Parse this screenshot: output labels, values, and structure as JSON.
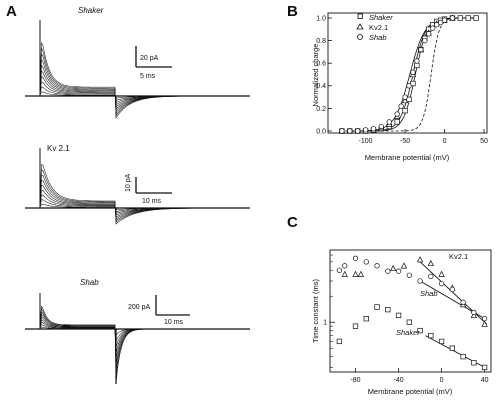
{
  "panels": {
    "A": {
      "letter": "A",
      "recordings": [
        {
          "label": "Shaker",
          "italic": true,
          "current_scale": "20 pA",
          "time_scale": "5 ms"
        },
        {
          "label": "Kv 2.1",
          "italic": false,
          "current_scale": "10 pA",
          "time_scale": "10 ms"
        },
        {
          "label": "Shab",
          "italic": true,
          "current_scale": "200 pA",
          "time_scale": "10 ms"
        }
      ]
    },
    "B": {
      "letter": "B",
      "chart_data": {
        "type": "scatter",
        "xlabel": "Membrane potential (mV)",
        "ylabel": "Normalized charge",
        "xlim": [
          -140,
          50
        ],
        "ylim": [
          0,
          1.0
        ],
        "x_ticks": [
          "-100",
          "-50",
          "0",
          "50"
        ],
        "y_ticks": [
          "0.0",
          "0.2",
          "0.4",
          "0.6",
          "0.8",
          "1.0"
        ],
        "legend_position": "top-left",
        "series": [
          {
            "name": "Shaker",
            "marker": "square",
            "x": [
              -130,
              -120,
              -110,
              -100,
              -90,
              -80,
              -70,
              -60,
              -50,
              -45,
              -40,
              -35,
              -30,
              -25,
              -20,
              -15,
              -10,
              -5,
              0,
              10,
              20,
              30,
              40
            ],
            "y": [
              0.0,
              0.0,
              0.0,
              0.0,
              0.01,
              0.02,
              0.04,
              0.08,
              0.18,
              0.28,
              0.42,
              0.58,
              0.72,
              0.82,
              0.9,
              0.94,
              0.97,
              0.98,
              0.99,
              1.0,
              1.0,
              1.0,
              1.0
            ]
          },
          {
            "name": "Kv2.1",
            "marker": "triangle",
            "x": [
              -130,
              -120,
              -110,
              -100,
              -90,
              -80,
              -70,
              -60,
              -50,
              -40,
              -30,
              -20,
              -10,
              0,
              10
            ],
            "y": [
              0.0,
              0.0,
              0.0,
              0.0,
              0.01,
              0.03,
              0.06,
              0.13,
              0.27,
              0.5,
              0.72,
              0.87,
              0.95,
              0.98,
              1.0
            ]
          },
          {
            "name": "Shab",
            "marker": "circle",
            "x": [
              -130,
              -120,
              -110,
              -100,
              -90,
              -80,
              -70,
              -60,
              -55,
              -50,
              -45,
              -40,
              -35,
              -30,
              -25,
              -20,
              -15,
              -10,
              -5,
              0,
              10
            ],
            "y": [
              0.0,
              0.0,
              0.0,
              0.01,
              0.02,
              0.04,
              0.08,
              0.15,
              0.22,
              0.3,
              0.4,
              0.52,
              0.62,
              0.72,
              0.8,
              0.86,
              0.91,
              0.94,
              0.96,
              0.98,
              1.0
            ]
          }
        ],
        "fits": [
          {
            "series": "Shaker",
            "style": "solid",
            "midpoint": -37,
            "slope": 7.5
          },
          {
            "series": "Kv2.1",
            "style": "solid",
            "midpoint": -40,
            "slope": 8
          },
          {
            "series": "Shab",
            "style": "solid",
            "midpoint": -44,
            "slope": 9.5
          },
          {
            "series": "",
            "style": "dashed",
            "midpoint": -17,
            "slope": 5
          }
        ]
      }
    },
    "C": {
      "letter": "C",
      "chart_data": {
        "type": "scatter",
        "xlabel": "Membrane potential (mV)",
        "ylabel": "Time constant (ms)",
        "y_scale": "log",
        "xlim": [
          -100,
          45
        ],
        "ylim": [
          0.28,
          6.5
        ],
        "x_ticks": [
          "-80",
          "-40",
          "0",
          "40"
        ],
        "y_ticks": [
          "1"
        ],
        "series": [
          {
            "name": "Kv2.1",
            "marker": "triangle",
            "x": [
              -90,
              -80,
              -75,
              -45,
              -35,
              -20,
              -10,
              0,
              10,
              20,
              30,
              40
            ],
            "y": [
              3.6,
              3.6,
              3.6,
              4.2,
              4.5,
              5.3,
              4.8,
              3.6,
              2.5,
              1.6,
              1.2,
              0.95
            ]
          },
          {
            "name": "Shab",
            "marker": "circle",
            "x": [
              -95,
              -90,
              -80,
              -70,
              -60,
              -50,
              -40,
              -30,
              -20,
              -10,
              0,
              10,
              20,
              30,
              40
            ],
            "y": [
              4.0,
              4.5,
              5.5,
              5.0,
              4.5,
              3.9,
              3.9,
              3.5,
              3.0,
              3.4,
              2.8,
              2.4,
              1.7,
              1.3,
              1.1
            ]
          },
          {
            "name": "Shaker",
            "marker": "square",
            "x": [
              -95,
              -80,
              -70,
              -60,
              -50,
              -40,
              -30,
              -20,
              -10,
              0,
              10,
              20,
              30,
              40
            ],
            "y": [
              0.6,
              0.9,
              1.1,
              1.5,
              1.4,
              1.2,
              1.0,
              0.8,
              0.7,
              0.6,
              0.5,
              0.4,
              0.34,
              0.3
            ]
          }
        ],
        "fits": [
          {
            "series": "Kv2.1",
            "x": [
              -20,
              42
            ],
            "y": [
              5.0,
              0.95
            ]
          },
          {
            "series": "Shab",
            "x": [
              -20,
              40
            ],
            "y": [
              3.0,
              1.1
            ]
          },
          {
            "series": "Shaker",
            "x": [
              -15,
              40
            ],
            "y": [
              0.7,
              0.3
            ]
          }
        ],
        "annotations": [
          {
            "text": "Kv2.1",
            "italic": false
          },
          {
            "text": "Shab",
            "italic": true
          },
          {
            "text": "Shaker",
            "italic": true
          }
        ]
      }
    }
  },
  "colors": {
    "ink": "#111111",
    "background": "#ffffff"
  }
}
